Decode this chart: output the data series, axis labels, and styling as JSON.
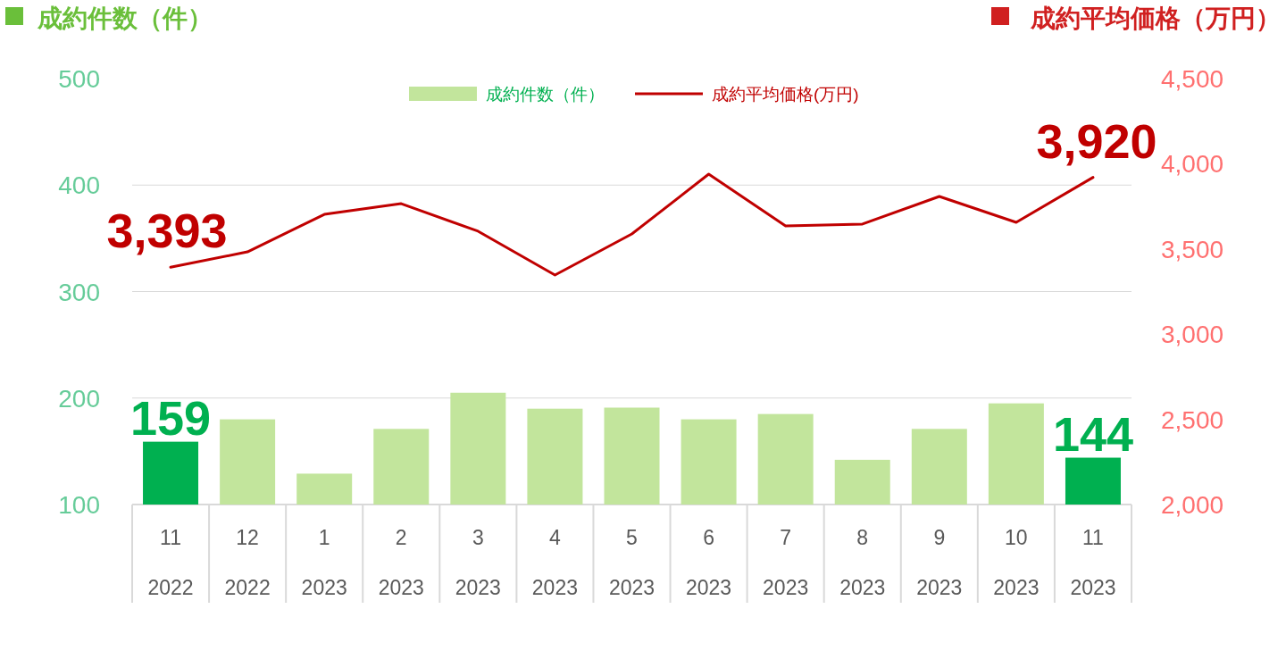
{
  "chart_data": {
    "type": "bar",
    "ylabel": "成約件数（件）",
    "y2label": "成約平均価格（万円）",
    "categories": [
      "11\n2022",
      "12\n2022",
      "1\n2023",
      "2\n2023",
      "3\n2023",
      "4\n2023",
      "5\n2023",
      "6\n2023",
      "7\n2023",
      "8\n2023",
      "9\n2023",
      "10\n2023",
      "11\n2023"
    ],
    "series": [
      {
        "name": "成約件数（件）",
        "color": "#c2e59c",
        "colors": [
          "#00b050",
          "#c2e59c",
          "#c2e59c",
          "#c2e59c",
          "#c2e59c",
          "#c2e59c",
          "#c2e59c",
          "#c2e59c",
          "#c2e59c",
          "#c2e59c",
          "#c2e59c",
          "#c2e59c",
          "#00b050"
        ],
        "values": [
          159,
          180,
          129,
          171,
          205,
          190,
          191,
          180,
          185,
          142,
          171,
          195,
          144
        ],
        "value_labels": [
          "159",
          null,
          null,
          null,
          null,
          null,
          null,
          null,
          null,
          null,
          null,
          null,
          "144"
        ]
      },
      {
        "name": "成約平均価格(万円)",
        "type": "line",
        "axis": "y2",
        "color": "#c00000",
        "values": [
          3393,
          3483,
          3703,
          3766,
          3604,
          3347,
          3588,
          3939,
          3635,
          3646,
          3808,
          3656,
          3920
        ],
        "value_labels": [
          "3,393",
          null,
          null,
          null,
          null,
          null,
          null,
          null,
          null,
          null,
          null,
          null,
          "3,920"
        ]
      }
    ],
    "ylim": [
      100,
      500
    ],
    "yticks": [
      100,
      200,
      300,
      400,
      500
    ],
    "y2lim": [
      2000,
      4500
    ],
    "y2ticks": [
      {
        "value": 2000,
        "label": "2,000"
      },
      {
        "value": 2500,
        "label": "2,500"
      },
      {
        "value": 3000,
        "label": "3,000"
      },
      {
        "value": 3500,
        "label": "3,500"
      },
      {
        "value": 4000,
        "label": "4,000"
      },
      {
        "value": 4500,
        "label": "4,500"
      }
    ],
    "grid": "y",
    "legend": "top"
  }
}
